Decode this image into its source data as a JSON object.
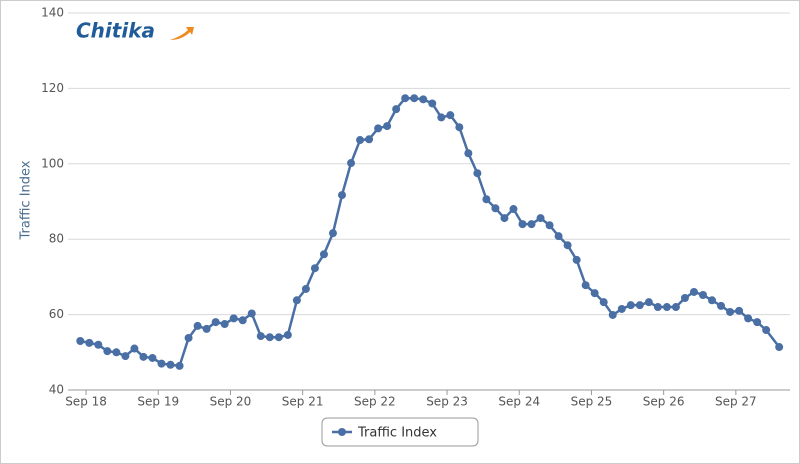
{
  "chart_data": {
    "type": "line",
    "logo": "Chitika",
    "y_label": "Traffic Index",
    "x": [
      -0.08,
      0.045,
      0.17,
      0.295,
      0.42,
      0.545,
      0.67,
      0.795,
      0.92,
      1.045,
      1.17,
      1.295,
      1.42,
      1.545,
      1.67,
      1.795,
      1.92,
      2.045,
      2.17,
      2.295,
      2.42,
      2.545,
      2.67,
      2.795,
      2.92,
      3.045,
      3.17,
      3.295,
      3.42,
      3.545,
      3.67,
      3.795,
      3.92,
      4.045,
      4.17,
      4.295,
      4.42,
      4.545,
      4.67,
      4.795,
      4.92,
      5.045,
      5.17,
      5.295,
      5.42,
      5.545,
      5.67,
      5.795,
      5.92,
      6.045,
      6.17,
      6.295,
      6.42,
      6.545,
      6.67,
      6.795,
      6.92,
      7.045,
      7.17,
      7.295,
      7.42,
      7.545,
      7.67,
      7.795,
      7.92,
      8.045,
      8.17,
      8.295,
      8.42,
      8.545,
      8.67,
      8.795,
      8.92,
      9.045,
      9.17,
      9.295,
      9.42,
      9.6
    ],
    "series": [
      {
        "name": "Traffic Index",
        "color": "#4a6fa5",
        "values": [
          53,
          52.5,
          52,
          50.3,
          50,
          49,
          51,
          48.8,
          48.5,
          47,
          46.7,
          46.4,
          53.8,
          57,
          56.2,
          58,
          57.5,
          59,
          58.5,
          60.3,
          54.3,
          54,
          54,
          54.6,
          63.8,
          66.8,
          72.3,
          76,
          81.6,
          91.7,
          100.2,
          106.3,
          106.5,
          109.4,
          110,
          114.5,
          117.4,
          117.4,
          117.1,
          116,
          112.3,
          112.9,
          109.7,
          102.8,
          97.5,
          90.6,
          88.2,
          85.6,
          88,
          84,
          84,
          85.6,
          83.7,
          80.8,
          78.4,
          74.5,
          67.8,
          65.7,
          63.3,
          59.9,
          61.5,
          62.5,
          62.5,
          63.3,
          62,
          62,
          62,
          64.4,
          66,
          65.2,
          63.8,
          62.3,
          60.7,
          61,
          59,
          58,
          55.9,
          51.4
        ]
      }
    ],
    "xlim": [
      -0.25,
      9.75
    ],
    "xticks": [
      {
        "value": 0,
        "label": "Sep 18"
      },
      {
        "value": 1,
        "label": "Sep 19"
      },
      {
        "value": 2,
        "label": "Sep 20"
      },
      {
        "value": 3,
        "label": "Sep 21"
      },
      {
        "value": 4,
        "label": "Sep 22"
      },
      {
        "value": 5,
        "label": "Sep 23"
      },
      {
        "value": 6,
        "label": "Sep 24"
      },
      {
        "value": 7,
        "label": "Sep 25"
      },
      {
        "value": 8,
        "label": "Sep 26"
      },
      {
        "value": 9,
        "label": "Sep 27"
      }
    ],
    "ylim": [
      40,
      140
    ],
    "yticks": [
      40,
      60,
      80,
      100,
      120,
      140
    ],
    "grid": true
  }
}
